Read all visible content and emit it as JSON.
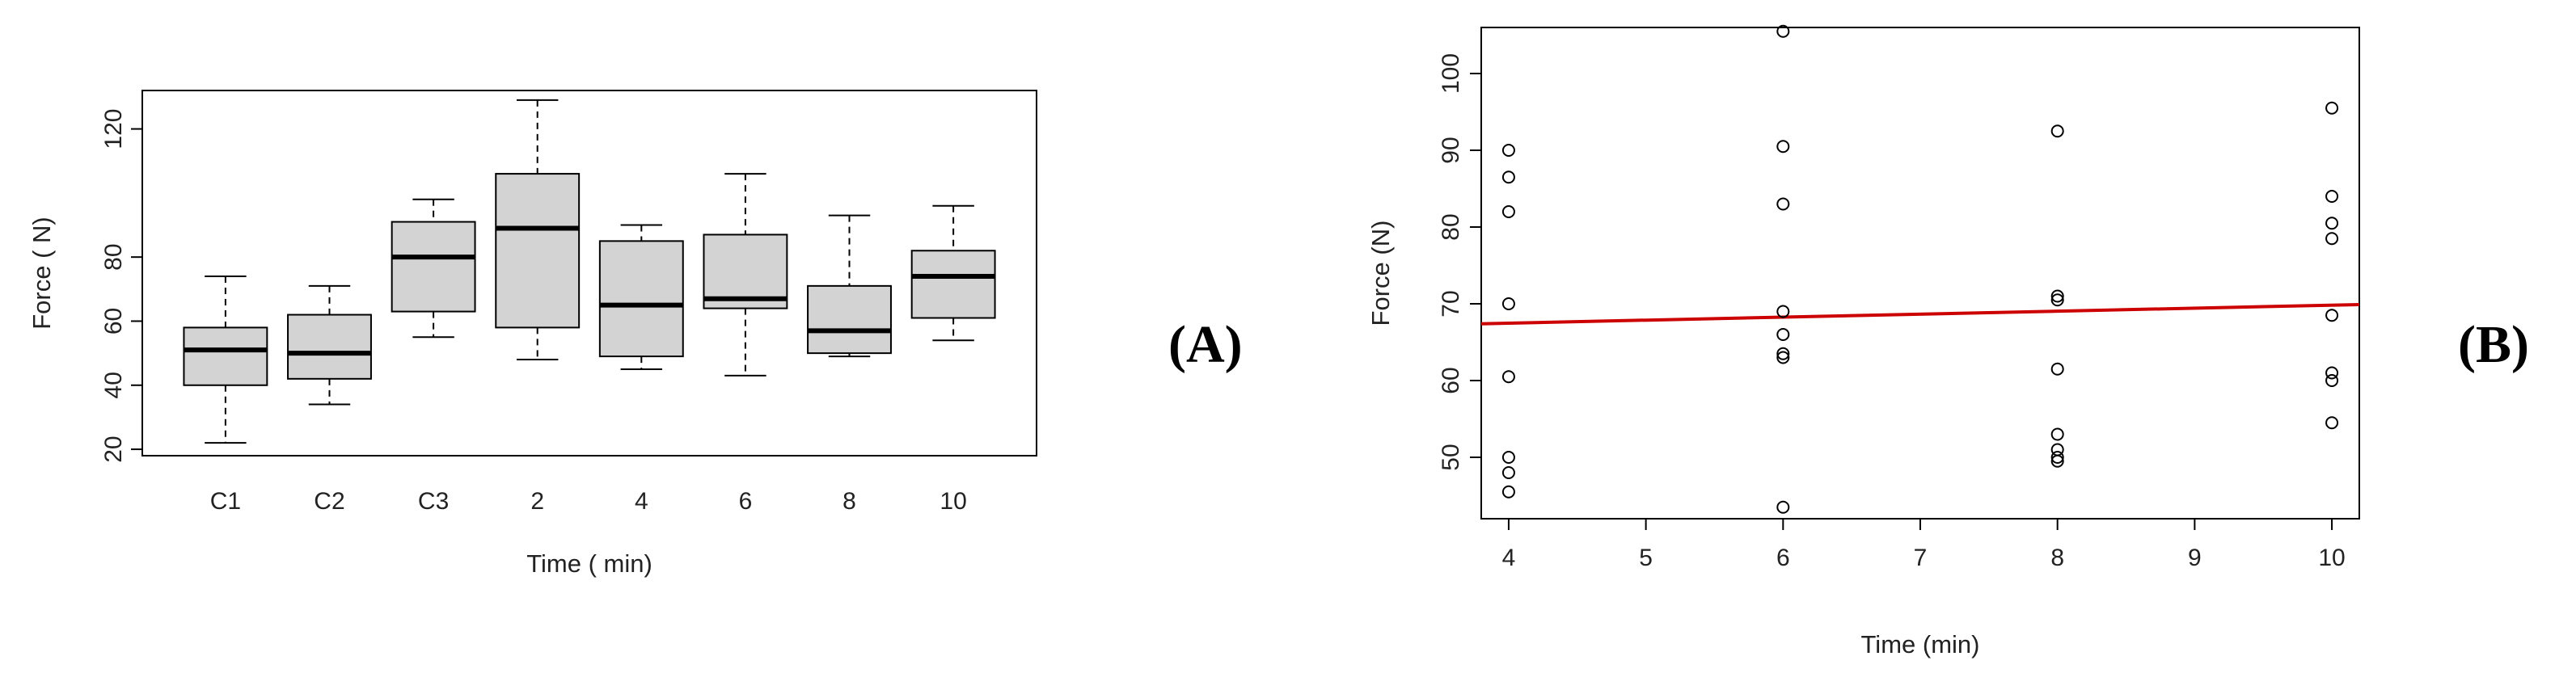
{
  "figure": {
    "panel_labels": [
      "(A)",
      "(B)"
    ]
  },
  "chart_data": [
    {
      "type": "box",
      "panel": "(A)",
      "xlabel": "Time  ( min)",
      "ylabel": "Force  ( N)",
      "ylim": [
        18,
        132
      ],
      "yticks": [
        20,
        40,
        60,
        80,
        120
      ],
      "categories": [
        "C1",
        "C2",
        "C3",
        "2",
        "4",
        "6",
        "8",
        "10"
      ],
      "boxes": [
        {
          "min": 22,
          "q1": 40,
          "median": 51,
          "q3": 58,
          "max": 74
        },
        {
          "min": 34,
          "q1": 42,
          "median": 50,
          "q3": 62,
          "max": 71
        },
        {
          "min": 55,
          "q1": 63,
          "median": 80,
          "q3": 91,
          "max": 98
        },
        {
          "min": 48,
          "q1": 58,
          "median": 89,
          "q3": 106,
          "max": 129
        },
        {
          "min": 45,
          "q1": 49,
          "median": 65,
          "q3": 85,
          "max": 90
        },
        {
          "min": 43,
          "q1": 64,
          "median": 67,
          "q3": 87,
          "max": 106
        },
        {
          "min": 49,
          "q1": 50,
          "median": 57,
          "q3": 71,
          "max": 93
        },
        {
          "min": 54,
          "q1": 61,
          "median": 74,
          "q3": 82,
          "max": 96
        }
      ],
      "fill_color": "#d3d3d3",
      "grid": false
    },
    {
      "type": "scatter",
      "panel": "(B)",
      "xlabel": "Time (min)",
      "ylabel": "Force (N)",
      "xlim": [
        3.8,
        10.2
      ],
      "ylim": [
        42,
        106
      ],
      "xticks": [
        4,
        5,
        6,
        7,
        8,
        9,
        10
      ],
      "yticks": [
        50,
        60,
        70,
        80,
        90,
        100
      ],
      "points": [
        {
          "x": 4,
          "y": 90
        },
        {
          "x": 4,
          "y": 86.5
        },
        {
          "x": 4,
          "y": 82
        },
        {
          "x": 4,
          "y": 70
        },
        {
          "x": 4,
          "y": 60.5
        },
        {
          "x": 4,
          "y": 50
        },
        {
          "x": 4,
          "y": 48
        },
        {
          "x": 4,
          "y": 45.5
        },
        {
          "x": 6,
          "y": 105.5
        },
        {
          "x": 6,
          "y": 90.5
        },
        {
          "x": 6,
          "y": 83
        },
        {
          "x": 6,
          "y": 69
        },
        {
          "x": 6,
          "y": 66
        },
        {
          "x": 6,
          "y": 63.5
        },
        {
          "x": 6,
          "y": 63
        },
        {
          "x": 6,
          "y": 43.5
        },
        {
          "x": 8,
          "y": 92.5
        },
        {
          "x": 8,
          "y": 71
        },
        {
          "x": 8,
          "y": 70.5
        },
        {
          "x": 8,
          "y": 61.5
        },
        {
          "x": 8,
          "y": 53
        },
        {
          "x": 8,
          "y": 51
        },
        {
          "x": 8,
          "y": 50
        },
        {
          "x": 8,
          "y": 49.5
        },
        {
          "x": 10,
          "y": 95.5
        },
        {
          "x": 10,
          "y": 84
        },
        {
          "x": 10,
          "y": 80.5
        },
        {
          "x": 10,
          "y": 78.5
        },
        {
          "x": 10,
          "y": 68.5
        },
        {
          "x": 10,
          "y": 61
        },
        {
          "x": 10,
          "y": 60
        },
        {
          "x": 10,
          "y": 54.5
        }
      ],
      "fit_line": {
        "x": [
          3.8,
          10.2
        ],
        "y": [
          67.4,
          69.9
        ],
        "color": "#cc0000"
      },
      "grid": false
    }
  ]
}
